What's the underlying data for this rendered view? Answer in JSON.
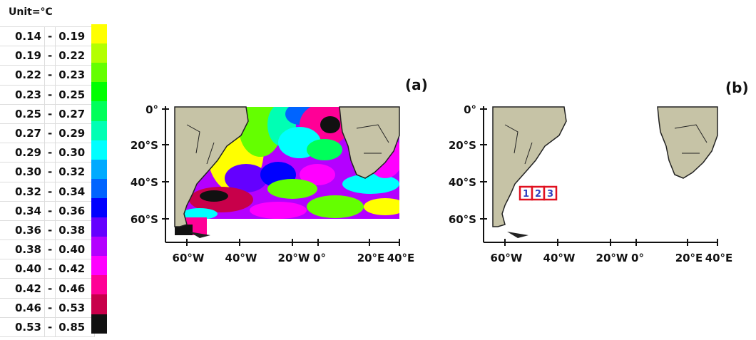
{
  "legend": {
    "unit": "Unit=°C",
    "rows": [
      {
        "lo": "0.14",
        "hi": "0.19",
        "color": "#ffff00"
      },
      {
        "lo": "0.19",
        "hi": "0.22",
        "color": "#b4ff00"
      },
      {
        "lo": "0.22",
        "hi": "0.23",
        "color": "#64ff00"
      },
      {
        "lo": "0.23",
        "hi": "0.25",
        "color": "#00ff00"
      },
      {
        "lo": "0.25",
        "hi": "0.27",
        "color": "#00ff5a"
      },
      {
        "lo": "0.27",
        "hi": "0.29",
        "color": "#00ffb4"
      },
      {
        "lo": "0.29",
        "hi": "0.30",
        "color": "#00ffff"
      },
      {
        "lo": "0.30",
        "hi": "0.32",
        "color": "#00aaff"
      },
      {
        "lo": "0.32",
        "hi": "0.34",
        "color": "#0064ff"
      },
      {
        "lo": "0.34",
        "hi": "0.36",
        "color": "#0000ff"
      },
      {
        "lo": "0.36",
        "hi": "0.38",
        "color": "#6400ff"
      },
      {
        "lo": "0.38",
        "hi": "0.40",
        "color": "#b400ff"
      },
      {
        "lo": "0.40",
        "hi": "0.42",
        "color": "#ff00ff"
      },
      {
        "lo": "0.42",
        "hi": "0.46",
        "color": "#ff0096"
      },
      {
        "lo": "0.46",
        "hi": "0.53",
        "color": "#c8004a"
      },
      {
        "lo": "0.53",
        "hi": "0.85",
        "color": "#111111"
      }
    ]
  },
  "panels": [
    {
      "label": "(a)"
    },
    {
      "label": "(b)",
      "boxes": [
        "1",
        "2",
        "3"
      ]
    }
  ],
  "axes": {
    "lat": [
      "0°",
      "20°S",
      "40°S",
      "60°S"
    ],
    "lon": [
      "60°W",
      "40°W",
      "20°W",
      "0°",
      "20°E",
      "40°E"
    ]
  },
  "colors": {
    "land": "#c6c3a6",
    "coast": "#222222",
    "box": "#e01020",
    "box_text": "#3040c0"
  }
}
